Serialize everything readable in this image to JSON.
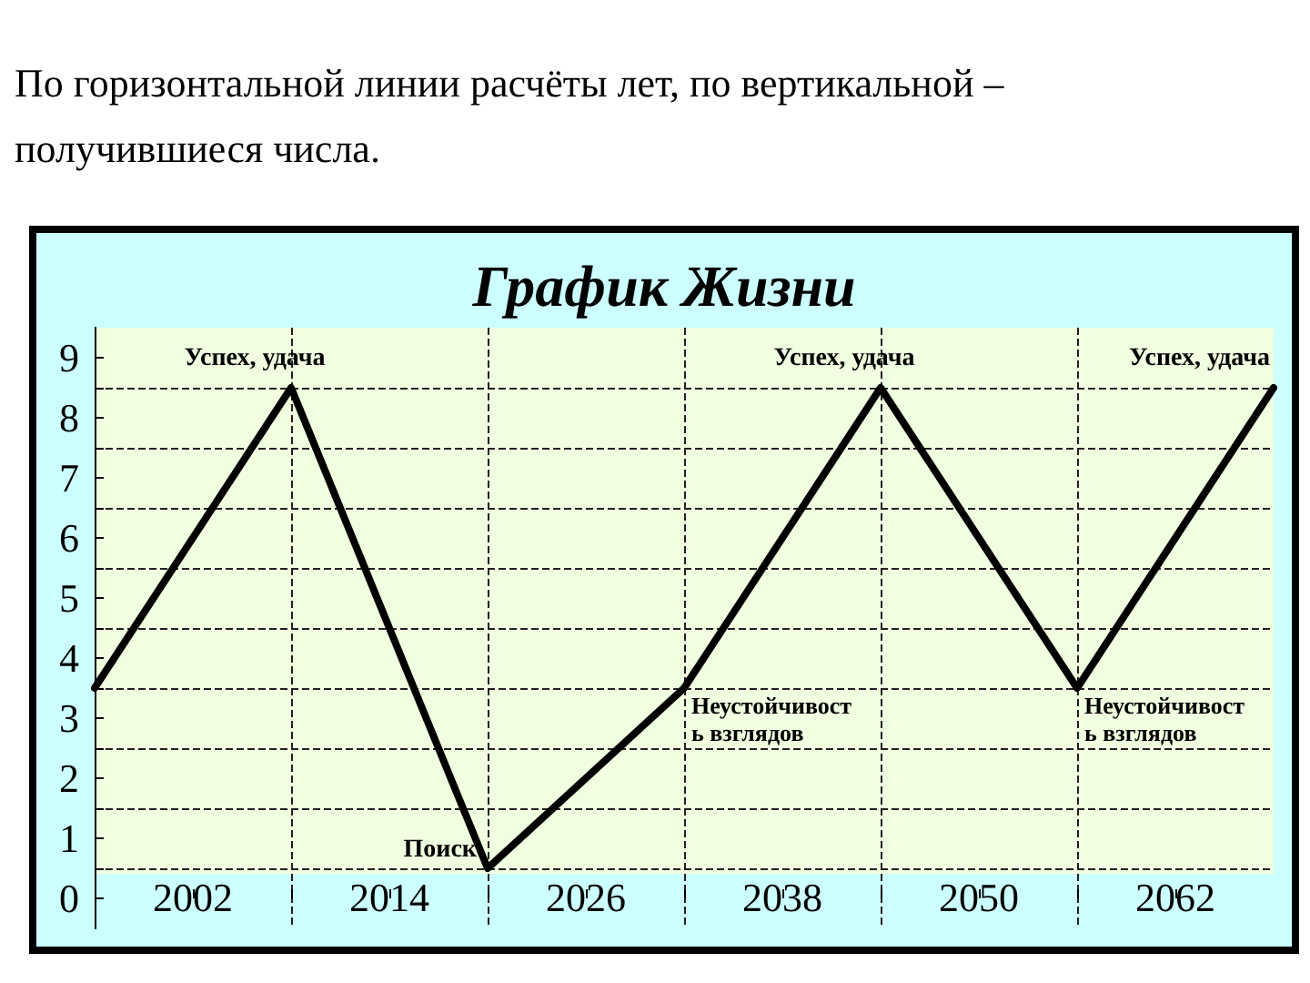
{
  "chart_data": {
    "type": "line",
    "title": "График Жизни",
    "annotations": [
      "По горизонтальной линии расчёты лет, по вертикальной – получившиеся числа.",
      {
        "text": "Успех, удача",
        "x": 2008,
        "y": 8.5
      },
      {
        "text": "Поиск",
        "x": 2020,
        "y": 0.5
      },
      {
        "text": "Неустойчивость взглядов",
        "x": 2032,
        "y": 3.5
      },
      {
        "text": "Успех, удача",
        "x": 2044,
        "y": 8.5
      },
      {
        "text": "Неустойчивость взглядов",
        "x": 2056,
        "y": 3.5
      },
      {
        "text": "Успех, удача",
        "x": 2068,
        "y": 8.5
      }
    ],
    "x": [
      1996,
      2008,
      2020,
      2032,
      2044,
      2056,
      2068
    ],
    "series": [
      {
        "color": "#000000",
        "values": [
          3.5,
          8.5,
          0.5,
          3.5,
          8.5,
          3.5,
          8.5
        ]
      }
    ],
    "xlim": [
      1996,
      2068
    ],
    "xticks": [
      2002,
      {
        "value": 2008,
        "label": null
      },
      2014,
      {
        "value": 2020,
        "label": null
      },
      2026,
      {
        "value": 2032,
        "label": null
      },
      2038,
      {
        "value": 2044,
        "label": null
      },
      2050,
      {
        "value": 2056,
        "label": null
      },
      2062
    ],
    "ylim": [
      -0.5,
      9.5
    ],
    "yticks": [
      0,
      {
        "value": 0.5,
        "label": null
      },
      1,
      {
        "value": 1.5,
        "label": null
      },
      2,
      {
        "value": 2.5,
        "label": null
      },
      3,
      {
        "value": 3.5,
        "label": null
      },
      4,
      {
        "value": 4.5,
        "label": null
      },
      5,
      {
        "value": 5.5,
        "label": null
      },
      6,
      {
        "value": 6.5,
        "label": null
      },
      7,
      {
        "value": 7.5,
        "label": null
      },
      8,
      {
        "value": 8.5,
        "label": null
      },
      9
    ],
    "grid": true,
    "marker": "none",
    "line_style": "solid"
  }
}
